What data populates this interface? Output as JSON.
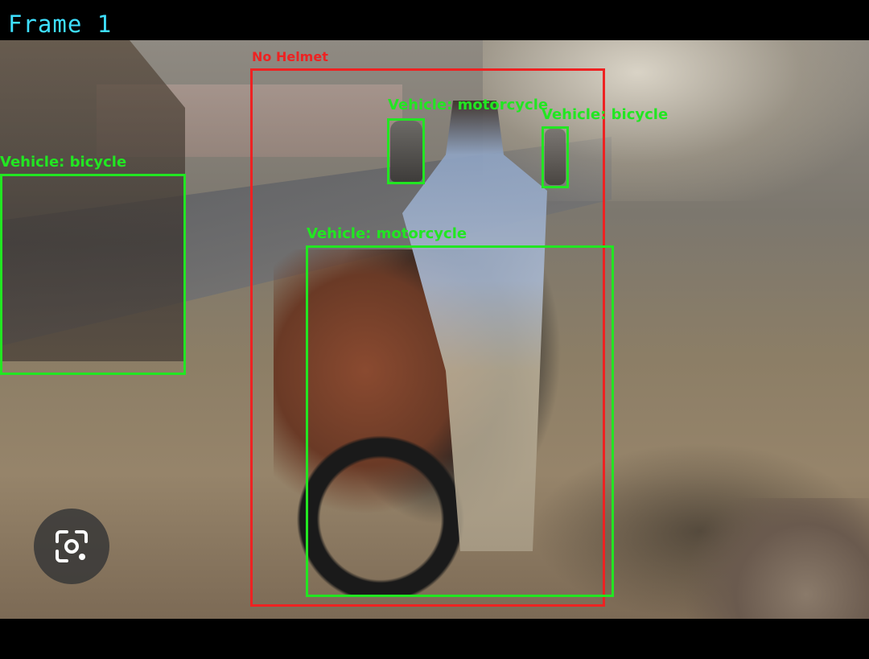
{
  "frame": {
    "title": "Frame 1"
  },
  "detections": [
    {
      "label": "No Helmet",
      "color": "#ee2222"
    },
    {
      "label": "Vehicle: motorcycle",
      "color": "#22e622"
    },
    {
      "label": "Vehicle: bicycle",
      "color": "#22e622"
    },
    {
      "label": "Vehicle: bicycle",
      "color": "#22e622"
    },
    {
      "label": "Vehicle: motorcycle",
      "color": "#22e622"
    }
  ],
  "overlay_buttons": {
    "lens_icon": "camera-lens-icon"
  }
}
